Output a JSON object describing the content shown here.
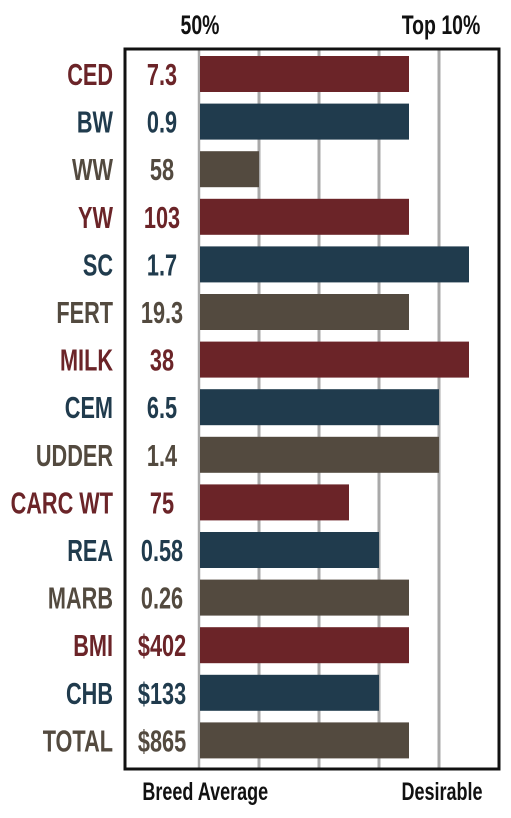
{
  "chart_data": {
    "type": "bar",
    "orientation": "horizontal",
    "top_labels": {
      "left": "50%",
      "right": "Top 10%"
    },
    "bottom_labels": {
      "left": "Breed Average",
      "right": "Desirable"
    },
    "axis_steps": 5,
    "grid": true,
    "colors": {
      "red": "#6b2428",
      "blue": "#203b4d",
      "brown": "#534a3f"
    },
    "rows": [
      {
        "trait": "CED",
        "value": "7.3",
        "bar": 3.5,
        "color": "red"
      },
      {
        "trait": "BW",
        "value": "0.9",
        "bar": 3.5,
        "color": "blue"
      },
      {
        "trait": "WW",
        "value": "58",
        "bar": 1.0,
        "color": "brown"
      },
      {
        "trait": "YW",
        "value": "103",
        "bar": 3.5,
        "color": "red"
      },
      {
        "trait": "SC",
        "value": "1.7",
        "bar": 4.5,
        "color": "blue"
      },
      {
        "trait": "FERT",
        "value": "19.3",
        "bar": 3.5,
        "color": "brown"
      },
      {
        "trait": "MILK",
        "value": "38",
        "bar": 4.5,
        "color": "red"
      },
      {
        "trait": "CEM",
        "value": "6.5",
        "bar": 4.0,
        "color": "blue"
      },
      {
        "trait": "UDDER",
        "value": "1.4",
        "bar": 4.0,
        "color": "brown"
      },
      {
        "trait": "CARC WT",
        "value": "75",
        "bar": 2.5,
        "color": "red"
      },
      {
        "trait": "REA",
        "value": "0.58",
        "bar": 3.0,
        "color": "blue"
      },
      {
        "trait": "MARB",
        "value": "0.26",
        "bar": 3.5,
        "color": "brown"
      },
      {
        "trait": "BMI",
        "value": "$402",
        "bar": 3.5,
        "color": "red"
      },
      {
        "trait": "CHB",
        "value": "$133",
        "bar": 3.0,
        "color": "blue"
      },
      {
        "trait": "TOTAL",
        "value": "$865",
        "bar": 3.5,
        "color": "brown"
      }
    ]
  }
}
